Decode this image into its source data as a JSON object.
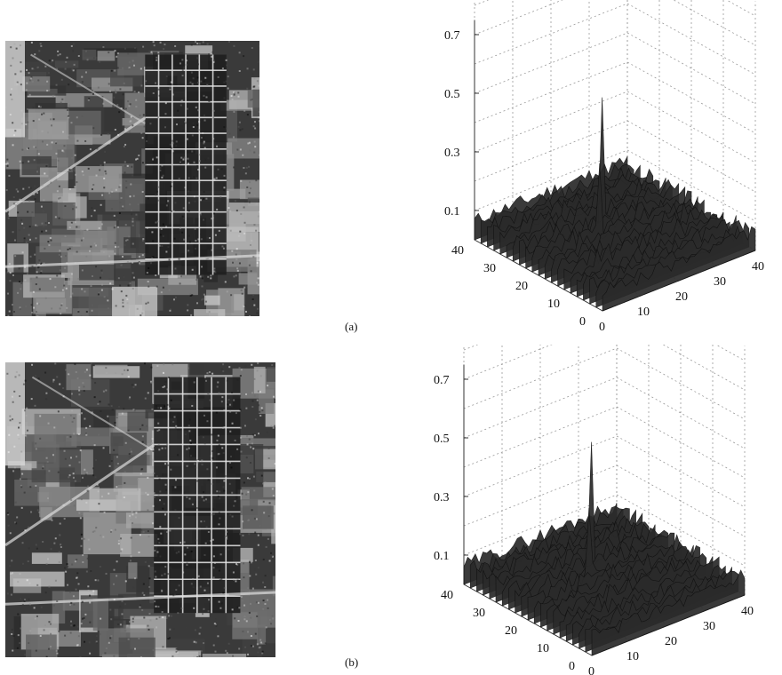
{
  "panels": [
    {
      "id": "a",
      "caption": "(a)",
      "image_description_name": "aerial-sar-image-a",
      "plot": {
        "z_ticks": [
          "0.1",
          "0.3",
          "0.5",
          "0.7"
        ],
        "x_ticks": [
          "0",
          "10",
          "20",
          "30",
          "40"
        ],
        "y_ticks": [
          "0",
          "10",
          "20",
          "30",
          "40"
        ],
        "colors": {
          "surface": "#2a2a2a",
          "grid": "#9a9a9a",
          "axis": "#333333"
        }
      }
    },
    {
      "id": "b",
      "caption": "(b)",
      "image_description_name": "aerial-sar-image-b",
      "plot": {
        "z_ticks": [
          "0.1",
          "0.3",
          "0.5",
          "0.7"
        ],
        "x_ticks": [
          "0",
          "10",
          "20",
          "30",
          "40"
        ],
        "y_ticks": [
          "0",
          "10",
          "20",
          "30",
          "40"
        ],
        "colors": {
          "surface": "#2a2a2a",
          "grid": "#9a9a9a",
          "axis": "#333333"
        }
      }
    }
  ]
}
